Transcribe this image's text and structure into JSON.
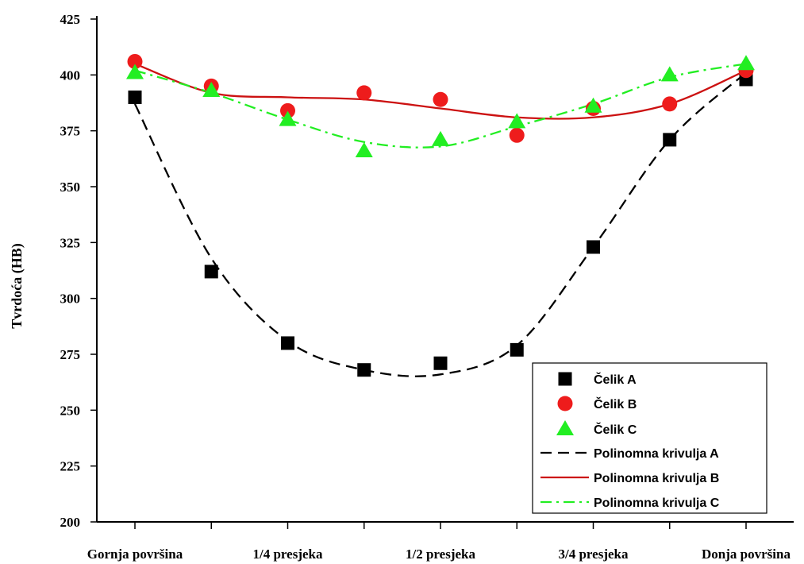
{
  "chart_data": {
    "type": "scatter",
    "title": "",
    "ylabel": "Tvrdoća (HB)",
    "xlabel": "",
    "ylim": [
      200,
      425
    ],
    "yticks": [
      200,
      225,
      250,
      275,
      300,
      325,
      350,
      375,
      400,
      425
    ],
    "x_positions": [
      0,
      1,
      2,
      3,
      4,
      5,
      6,
      7,
      8
    ],
    "x_tick_labels": [
      {
        "x": 0,
        "label": "Gornja površina"
      },
      {
        "x": 2,
        "label": "1/4 presjeka"
      },
      {
        "x": 4,
        "label": "1/2 presjeka"
      },
      {
        "x": 6,
        "label": "3/4 presjeka"
      },
      {
        "x": 8,
        "label": "Donja površina"
      }
    ],
    "series": [
      {
        "name": "Čelik A",
        "marker": "square",
        "color": "#000000",
        "values": [
          390,
          312,
          280,
          268,
          271,
          277,
          323,
          371,
          398
        ]
      },
      {
        "name": "Čelik B",
        "marker": "circle",
        "color": "#ee1c1c",
        "values": [
          406,
          395,
          384,
          392,
          389,
          373,
          385,
          387,
          402
        ]
      },
      {
        "name": "Čelik C",
        "marker": "triangle",
        "color": "#22ee22",
        "values": [
          401,
          393,
          380,
          366,
          371,
          379,
          386,
          400,
          405
        ]
      }
    ],
    "fits": [
      {
        "name": "Polinomna krivulja A",
        "style": "dashed",
        "color": "#000000",
        "values": [
          387,
          318,
          281,
          268,
          266,
          279,
          323,
          371,
          401
        ]
      },
      {
        "name": "Polinomna krivulja B",
        "style": "solid",
        "color": "#cc1111",
        "values": [
          405,
          392,
          390,
          389,
          385,
          381,
          381,
          387,
          402
        ]
      },
      {
        "name": "Polinomna krivulja C",
        "style": "dashdot",
        "color": "#22ee22",
        "values": [
          402,
          392,
          380,
          370,
          368,
          377,
          387,
          399,
          405
        ]
      }
    ],
    "legend_position": "bottom-right"
  }
}
